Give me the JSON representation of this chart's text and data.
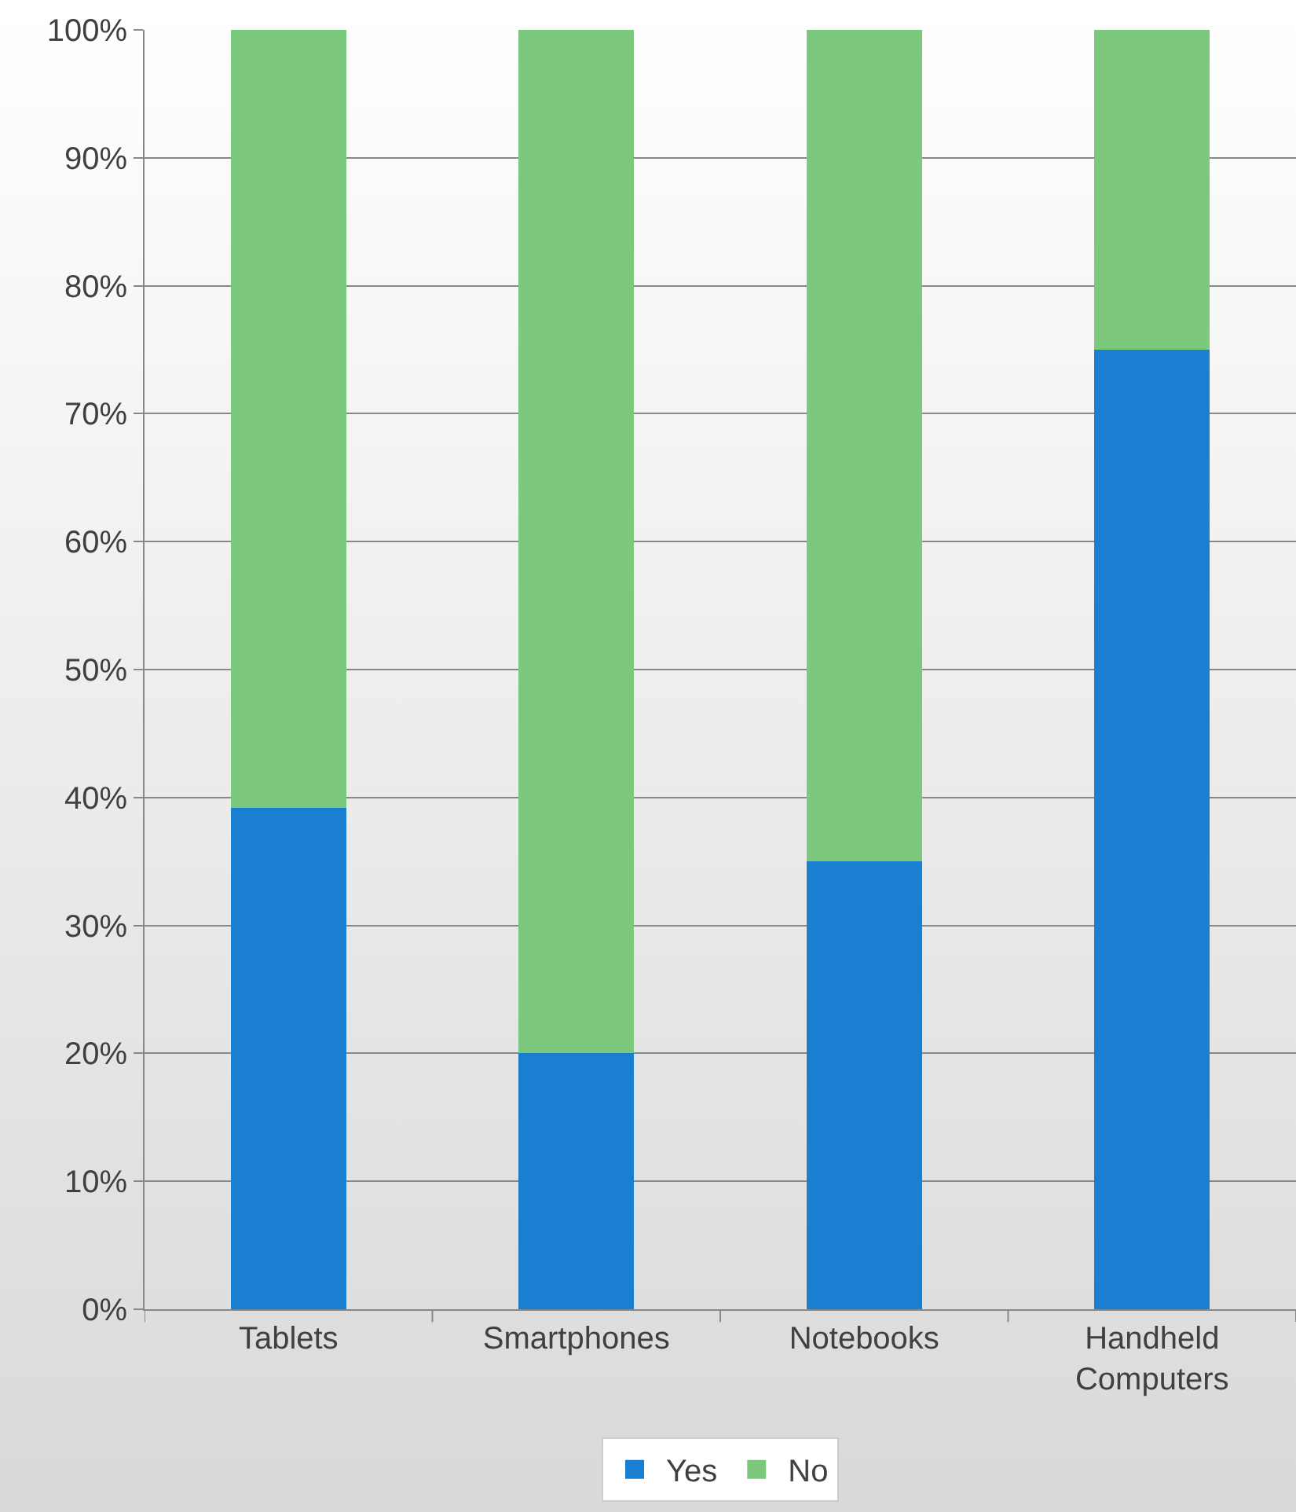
{
  "chart_data": {
    "type": "bar",
    "stacked": true,
    "categories": [
      "Tablets",
      "Smartphones",
      "Notebooks",
      "Handheld Computers"
    ],
    "series": [
      {
        "name": "Yes",
        "color": "#1a7fd0",
        "values": [
          39.2,
          20,
          35,
          75
        ]
      },
      {
        "name": "No",
        "color": "#7cc87c",
        "values": [
          60.8,
          80,
          65,
          25
        ]
      }
    ],
    "ylim": [
      0,
      100
    ],
    "yticks": [
      {
        "value": 0,
        "label": "0%"
      },
      {
        "value": 10,
        "label": "10%"
      },
      {
        "value": 20,
        "label": "20%"
      },
      {
        "value": 30,
        "label": "30%"
      },
      {
        "value": 40,
        "label": "40%"
      },
      {
        "value": 50,
        "label": "50%"
      },
      {
        "value": 60,
        "label": "60%"
      },
      {
        "value": 70,
        "label": "70%"
      },
      {
        "value": 80,
        "label": "80%"
      },
      {
        "value": 90,
        "label": "90%"
      },
      {
        "value": 100,
        "label": "100%"
      }
    ],
    "grid": "y",
    "legend": "bottom"
  }
}
